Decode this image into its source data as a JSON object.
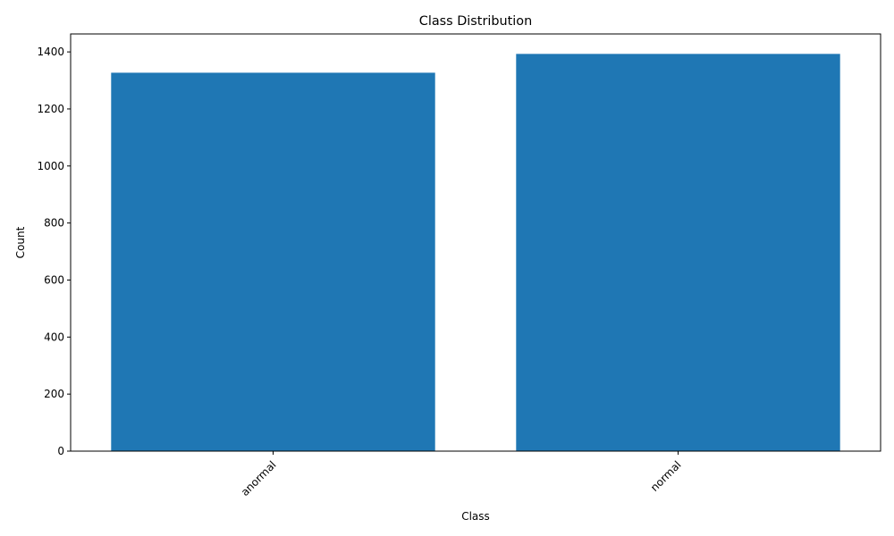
{
  "chart_data": {
    "type": "bar",
    "title": "Class Distribution",
    "xlabel": "Class",
    "ylabel": "Count",
    "categories": [
      "anormal",
      "normal"
    ],
    "values": [
      1327,
      1393
    ],
    "ylim": [
      0,
      1463
    ],
    "yticks": [
      0,
      200,
      400,
      600,
      800,
      1000,
      1200,
      1400
    ],
    "ytick_labels": [
      "0",
      "200",
      "400",
      "600",
      "800",
      "1000",
      "1200",
      "1400"
    ],
    "xtick_rotation": 45,
    "grid": false,
    "legend": "none",
    "bar_color": "#1f77b4"
  }
}
